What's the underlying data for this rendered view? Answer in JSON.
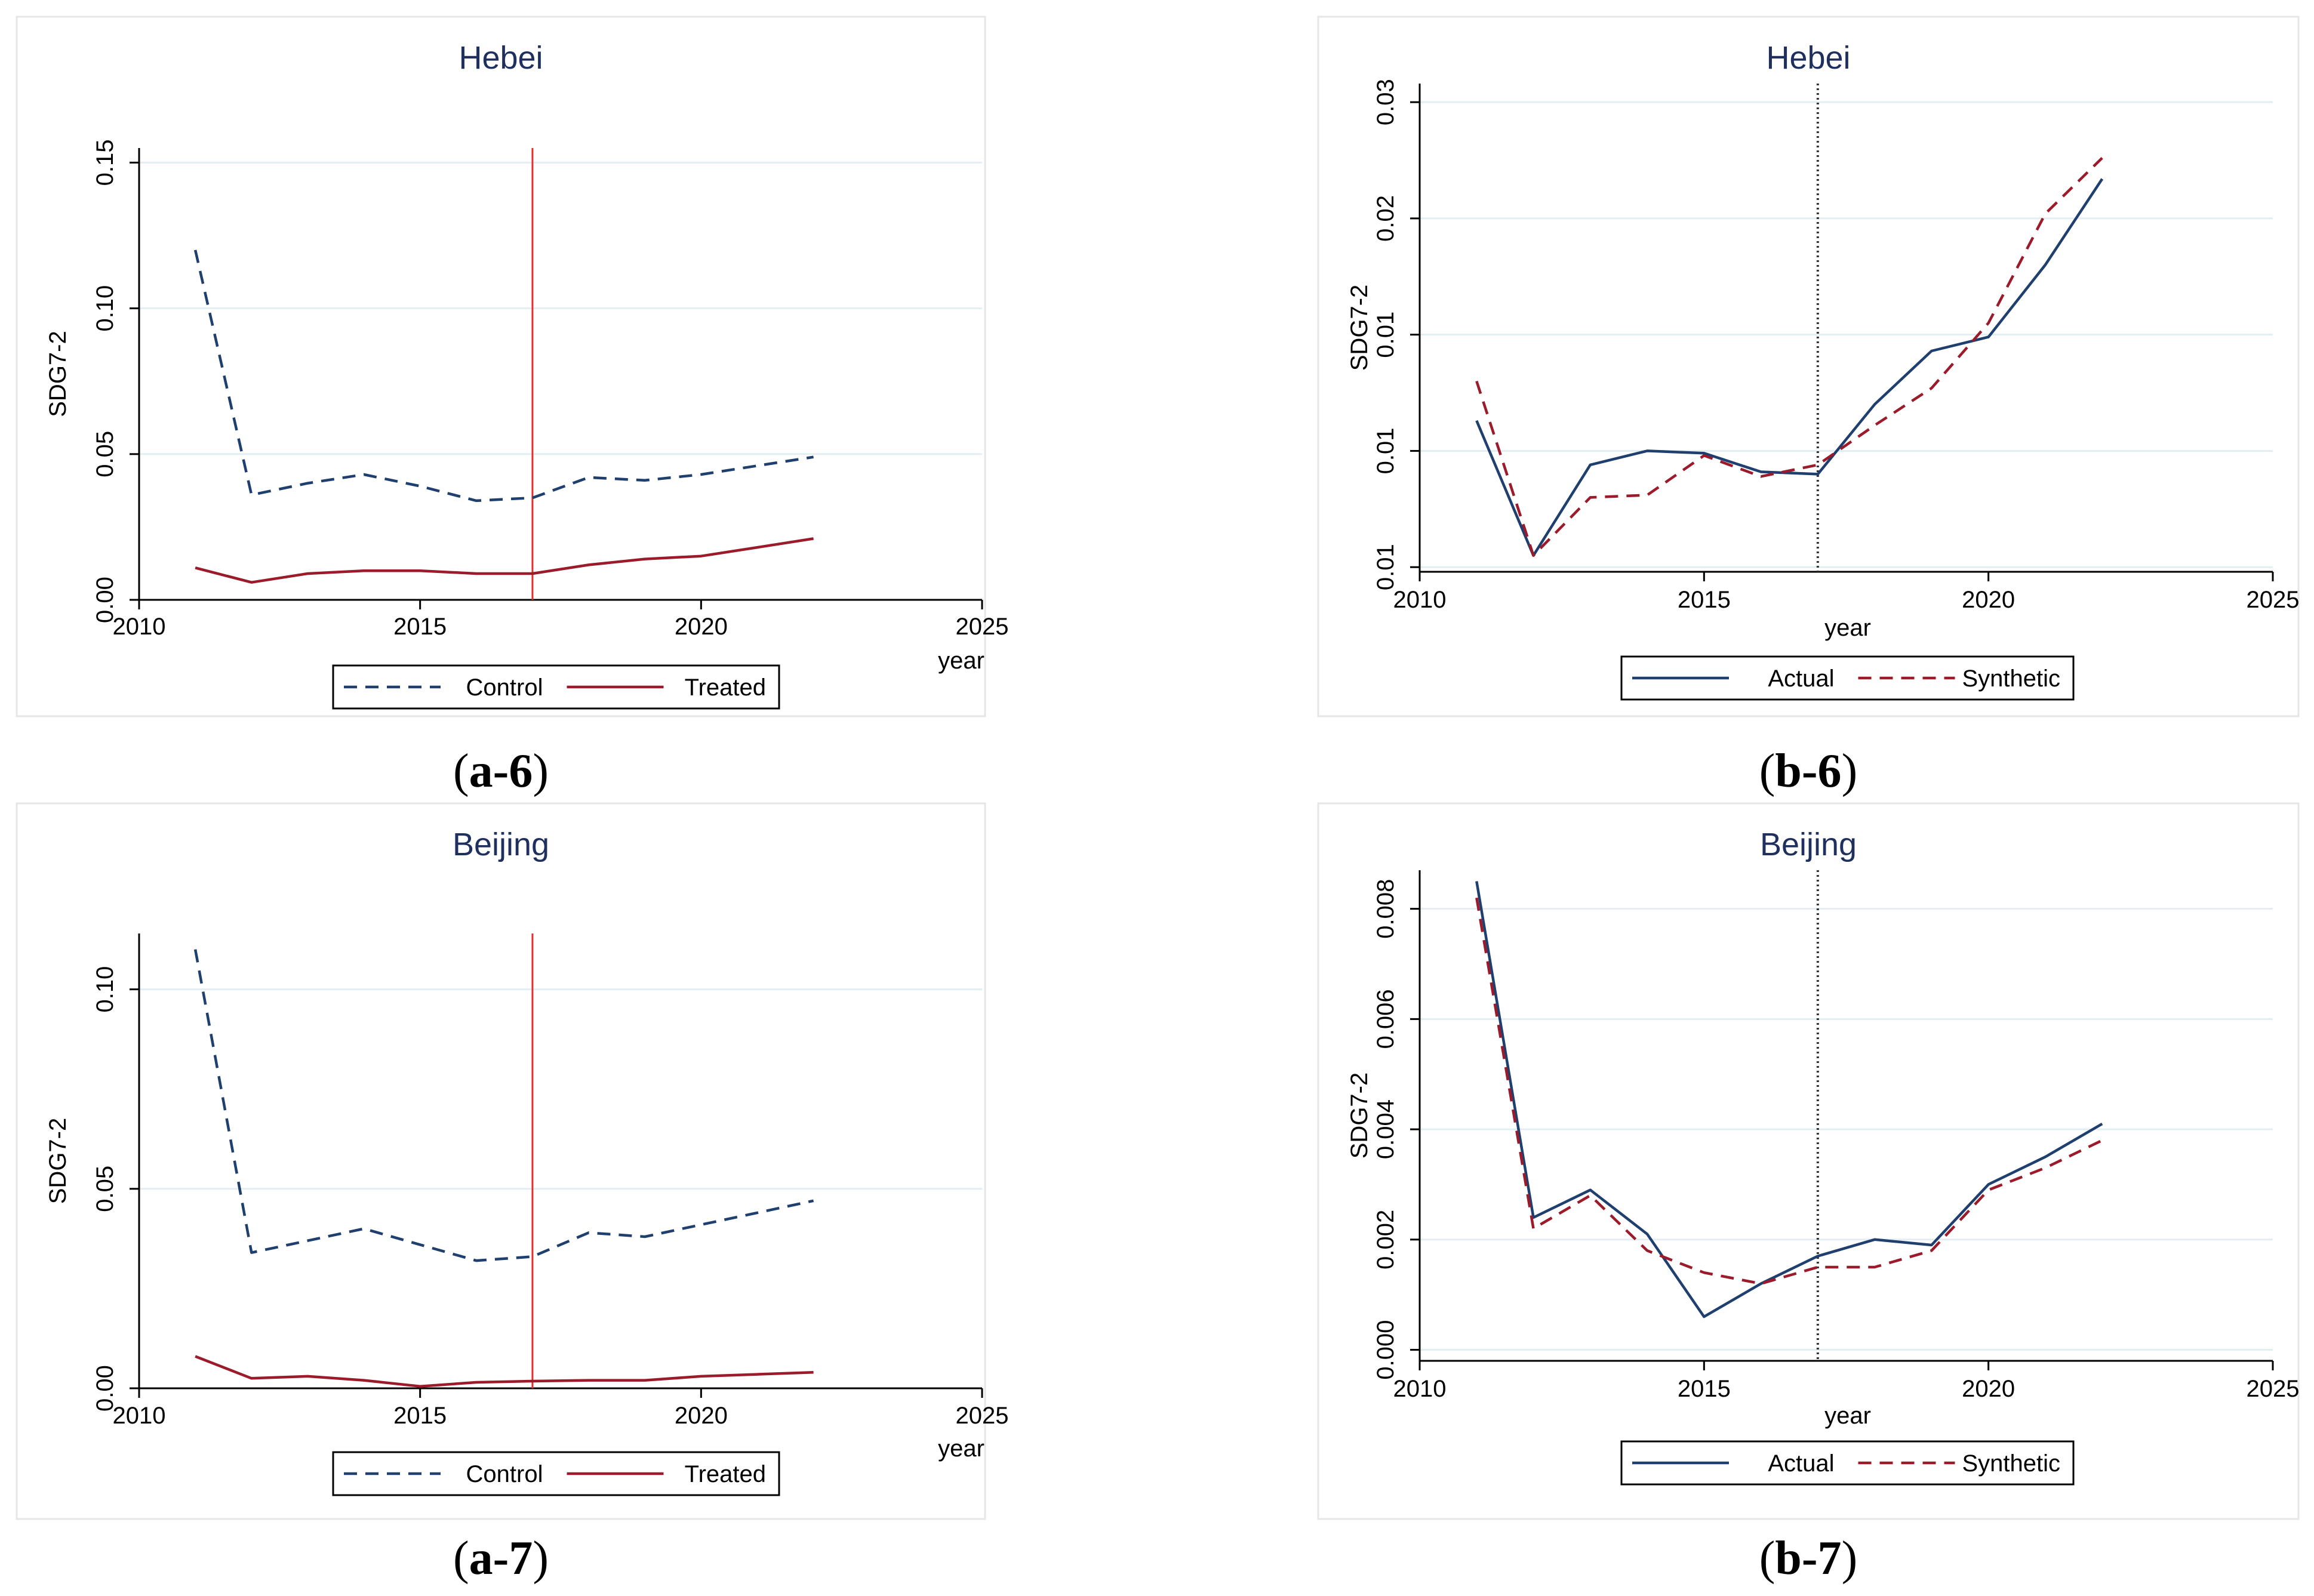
{
  "colors": {
    "control": "#1f3f6e",
    "treated": "#9b1b2a",
    "actual": "#1f3f6e",
    "synthetic": "#9b1b2a",
    "intervention": "#e03030",
    "grid": "#e3eef2",
    "title": "#1f2f5e"
  },
  "chart_data": [
    {
      "id": "a6",
      "type": "line",
      "caption": {
        "open": "(",
        "label": "a-6",
        "close": ")"
      },
      "title": "Hebei",
      "xlabel": "year",
      "ylabel": "SDG7-2",
      "xlim": [
        2010,
        2025
      ],
      "xticks": [
        2010,
        2015,
        2020,
        2025
      ],
      "ylim": [
        0,
        0.155
      ],
      "yticks": [
        0,
        0.05,
        0.1,
        0.15
      ],
      "ytick_labels": [
        "0.00",
        "0.05",
        "0.10",
        "0.15"
      ],
      "vline": {
        "x": 2017,
        "style": "solid"
      },
      "legend_position": "bottom",
      "x": [
        2011,
        2012,
        2013,
        2014,
        2015,
        2016,
        2017,
        2018,
        2019,
        2020,
        2021,
        2022
      ],
      "series": [
        {
          "name": "Control",
          "style": "dashed",
          "color_key": "control",
          "values": [
            0.12,
            0.036,
            0.04,
            0.043,
            0.039,
            0.034,
            0.035,
            0.042,
            0.041,
            0.043,
            0.046,
            0.049
          ]
        },
        {
          "name": "Treated",
          "style": "solid",
          "color_key": "treated",
          "values": [
            0.011,
            0.006,
            0.009,
            0.01,
            0.01,
            0.009,
            0.009,
            0.012,
            0.014,
            0.015,
            0.018,
            0.021
          ]
        }
      ]
    },
    {
      "id": "b6",
      "type": "line",
      "caption": {
        "open": "(",
        "label": "b-6",
        "close": ")"
      },
      "title": "Hebei",
      "xlabel": "year",
      "ylabel": "SDG7-2",
      "xlim": [
        2010,
        2025
      ],
      "xticks": [
        2010,
        2015,
        2020,
        2025
      ],
      "ylim": [
        0.0098,
        0.0308
      ],
      "yticks": [
        0.01,
        0.015,
        0.02,
        0.025,
        0.03
      ],
      "ytick_labels": [
        "0.01",
        "0.01",
        "0.01",
        "0.02",
        "0.03"
      ],
      "vline": {
        "x": 2017,
        "style": "dotted"
      },
      "legend_position": "bottom",
      "x": [
        2011,
        2012,
        2013,
        2014,
        2015,
        2016,
        2017,
        2018,
        2019,
        2020,
        2021,
        2022
      ],
      "series": [
        {
          "name": "Actual",
          "style": "solid",
          "color_key": "actual",
          "values": [
            0.0163,
            0.0105,
            0.0144,
            0.015,
            0.0149,
            0.0141,
            0.014,
            0.017,
            0.0193,
            0.0199,
            0.023,
            0.0267
          ]
        },
        {
          "name": "Synthetic",
          "style": "dashed",
          "color_key": "synthetic",
          "values": [
            0.018,
            0.0105,
            0.013,
            0.0131,
            0.0148,
            0.0139,
            0.0144,
            0.0161,
            0.0177,
            0.0205,
            0.0252,
            0.0276
          ]
        }
      ]
    },
    {
      "id": "a7",
      "type": "line",
      "caption": {
        "open": "(",
        "label": "a-7",
        "close": ")"
      },
      "title": "Beijing",
      "xlabel": "year",
      "ylabel": "SDG7-2",
      "xlim": [
        2010,
        2025
      ],
      "xticks": [
        2010,
        2015,
        2020,
        2025
      ],
      "ylim": [
        0,
        0.114
      ],
      "yticks": [
        0,
        0.05,
        0.1
      ],
      "ytick_labels": [
        "0.00",
        "0.05",
        "0.10"
      ],
      "vline": {
        "x": 2017,
        "style": "solid"
      },
      "legend_position": "bottom",
      "x": [
        2011,
        2012,
        2013,
        2014,
        2015,
        2016,
        2017,
        2018,
        2019,
        2020,
        2021,
        2022
      ],
      "series": [
        {
          "name": "Control",
          "style": "dashed",
          "color_key": "control",
          "values": [
            0.11,
            0.034,
            0.037,
            0.04,
            0.036,
            0.032,
            0.033,
            0.039,
            0.038,
            0.041,
            0.044,
            0.047
          ]
        },
        {
          "name": "Treated",
          "style": "solid",
          "color_key": "treated",
          "values": [
            0.008,
            0.0025,
            0.003,
            0.002,
            0.0005,
            0.0015,
            0.0018,
            0.002,
            0.002,
            0.003,
            0.0035,
            0.004
          ]
        }
      ]
    },
    {
      "id": "b7",
      "type": "line",
      "caption": {
        "open": "(",
        "label": "b-7",
        "close": ")"
      },
      "title": "Beijing",
      "xlabel": "year",
      "ylabel": "SDG7-2",
      "xlim": [
        2010,
        2025
      ],
      "xticks": [
        2010,
        2015,
        2020,
        2025
      ],
      "ylim": [
        -0.0002,
        0.0087
      ],
      "yticks": [
        0,
        0.002,
        0.004,
        0.006,
        0.008
      ],
      "ytick_labels": [
        "0.000",
        "0.002",
        "0.004",
        "0.006",
        "0.008"
      ],
      "vline": {
        "x": 2017,
        "style": "dotted"
      },
      "legend_position": "bottom",
      "x": [
        2011,
        2012,
        2013,
        2014,
        2015,
        2016,
        2017,
        2018,
        2019,
        2020,
        2021,
        2022
      ],
      "series": [
        {
          "name": "Actual",
          "style": "solid",
          "color_key": "actual",
          "values": [
            0.0085,
            0.0024,
            0.0029,
            0.0021,
            0.0006,
            0.0012,
            0.0017,
            0.002,
            0.0019,
            0.003,
            0.0035,
            0.0041
          ]
        },
        {
          "name": "Synthetic",
          "style": "dashed",
          "color_key": "synthetic",
          "values": [
            0.0082,
            0.0022,
            0.0028,
            0.0018,
            0.0014,
            0.0012,
            0.0015,
            0.0015,
            0.0018,
            0.0029,
            0.0033,
            0.0038
          ]
        }
      ]
    }
  ]
}
